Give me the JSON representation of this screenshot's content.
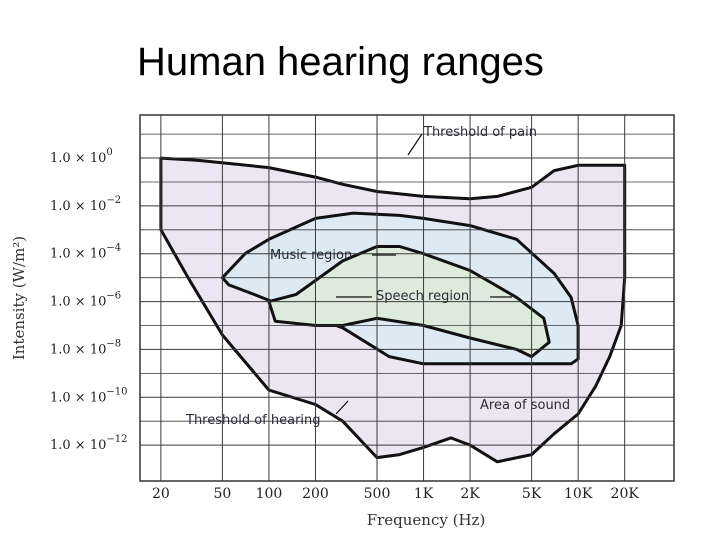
{
  "slide": {
    "title": "Human hearing ranges"
  },
  "colors": {
    "background": "#ffffff",
    "plot_bg": "#ffffff",
    "grid": "#3a3a3a",
    "area_fill": "#ece6f2",
    "music_fill": "#dde9f3",
    "speech_fill": "#dcebdc",
    "curve_stroke": "#111111"
  },
  "chart_data": {
    "type": "area",
    "title": "",
    "xlabel": "Frequency (Hz)",
    "ylabel": "Intensity (W/m²)",
    "x_scale": "log",
    "y_scale": "log",
    "grid": true,
    "x_ticks": [
      {
        "value": 20,
        "label": "20"
      },
      {
        "value": 50,
        "label": "50"
      },
      {
        "value": 100,
        "label": "100"
      },
      {
        "value": 200,
        "label": "200"
      },
      {
        "value": 500,
        "label": "500"
      },
      {
        "value": 1000,
        "label": "1K"
      },
      {
        "value": 2000,
        "label": "2K"
      },
      {
        "value": 5000,
        "label": "5K"
      },
      {
        "value": 10000,
        "label": "10K"
      },
      {
        "value": 20000,
        "label": "20K"
      }
    ],
    "y_ticks": [
      {
        "exp": 0,
        "mantissa": "1.0 × 10",
        "sup": "0"
      },
      {
        "exp": -2,
        "mantissa": "1.0 × 10",
        "sup": "−2"
      },
      {
        "exp": -4,
        "mantissa": "1.0 × 10",
        "sup": "−4"
      },
      {
        "exp": -6,
        "mantissa": "1.0 × 10",
        "sup": "−6"
      },
      {
        "exp": -8,
        "mantissa": "1.0 × 10",
        "sup": "−8"
      },
      {
        "exp": -10,
        "mantissa": "1.0 × 10",
        "sup": "−10"
      },
      {
        "exp": -12,
        "mantissa": "1.0 × 10",
        "sup": "−12"
      }
    ],
    "ylim_exp": [
      -13.5,
      1.8
    ],
    "xlim_log": [
      1.166,
      4.62
    ],
    "annotations": {
      "threshold_of_pain": "Threshold of pain",
      "music_region": "Music region",
      "speech_region": "Speech region",
      "area_of_sound": "Area of sound",
      "threshold_of_hearing": "Threshold of hearing"
    },
    "regions": [
      {
        "id": "area-of-sound",
        "label": "Area of sound",
        "points": [
          [
            20,
            1.0
          ],
          [
            35,
            0.8
          ],
          [
            100,
            0.4
          ],
          [
            200,
            0.16
          ],
          [
            300,
            0.08
          ],
          [
            500,
            0.04
          ],
          [
            1000,
            0.025
          ],
          [
            2000,
            0.02
          ],
          [
            3000,
            0.025
          ],
          [
            5000,
            0.06
          ],
          [
            7000,
            0.3
          ],
          [
            10000,
            0.5
          ],
          [
            14000,
            0.5
          ],
          [
            20000,
            0.5
          ],
          [
            20000,
            1e-05
          ],
          [
            19000,
            1e-07
          ],
          [
            16000,
            5e-09
          ],
          [
            13000,
            3e-10
          ],
          [
            10000,
            2e-11
          ],
          [
            7000,
            3e-12
          ],
          [
            5000,
            4e-13
          ],
          [
            3000,
            2e-13
          ],
          [
            2000,
            1e-12
          ],
          [
            1500,
            2e-12
          ],
          [
            1000,
            8e-13
          ],
          [
            700,
            4e-13
          ],
          [
            500,
            3e-13
          ],
          [
            300,
            1e-11
          ],
          [
            200,
            5e-11
          ],
          [
            100,
            2e-10
          ],
          [
            50,
            4e-08
          ],
          [
            30,
            1e-05
          ],
          [
            20,
            0.001
          ]
        ]
      },
      {
        "id": "music-region",
        "label": "Music region",
        "points": [
          [
            50,
            1e-05
          ],
          [
            70,
            0.0001
          ],
          [
            100,
            0.0004
          ],
          [
            200,
            0.003
          ],
          [
            350,
            0.005
          ],
          [
            700,
            0.004
          ],
          [
            1000,
            0.003
          ],
          [
            2000,
            0.0015
          ],
          [
            4000,
            0.0004
          ],
          [
            7000,
            1.5e-05
          ],
          [
            9000,
            1.5e-06
          ],
          [
            10000,
            1e-07
          ],
          [
            10000,
            4e-09
          ],
          [
            9000,
            2.5e-09
          ],
          [
            7000,
            2.5e-09
          ],
          [
            4000,
            2.5e-09
          ],
          [
            2000,
            2.5e-09
          ],
          [
            1000,
            2.5e-09
          ],
          [
            600,
            5e-09
          ],
          [
            300,
            8e-08
          ],
          [
            150,
            4e-07
          ],
          [
            80,
            2e-06
          ],
          [
            55,
            5e-06
          ]
        ]
      },
      {
        "id": "speech-region",
        "label": "Speech region",
        "points": [
          [
            100,
            1e-06
          ],
          [
            150,
            2e-06
          ],
          [
            300,
            5e-05
          ],
          [
            500,
            0.0002
          ],
          [
            700,
            0.0002
          ],
          [
            1000,
            0.0001
          ],
          [
            2000,
            2e-05
          ],
          [
            4000,
            1.5e-06
          ],
          [
            6000,
            2e-07
          ],
          [
            6500,
            2e-08
          ],
          [
            5000,
            5e-09
          ],
          [
            4000,
            1e-08
          ],
          [
            2000,
            3e-08
          ],
          [
            1000,
            1e-07
          ],
          [
            500,
            2e-07
          ],
          [
            300,
            1e-07
          ],
          [
            200,
            1e-07
          ],
          [
            110,
            1.5e-07
          ]
        ]
      }
    ]
  }
}
